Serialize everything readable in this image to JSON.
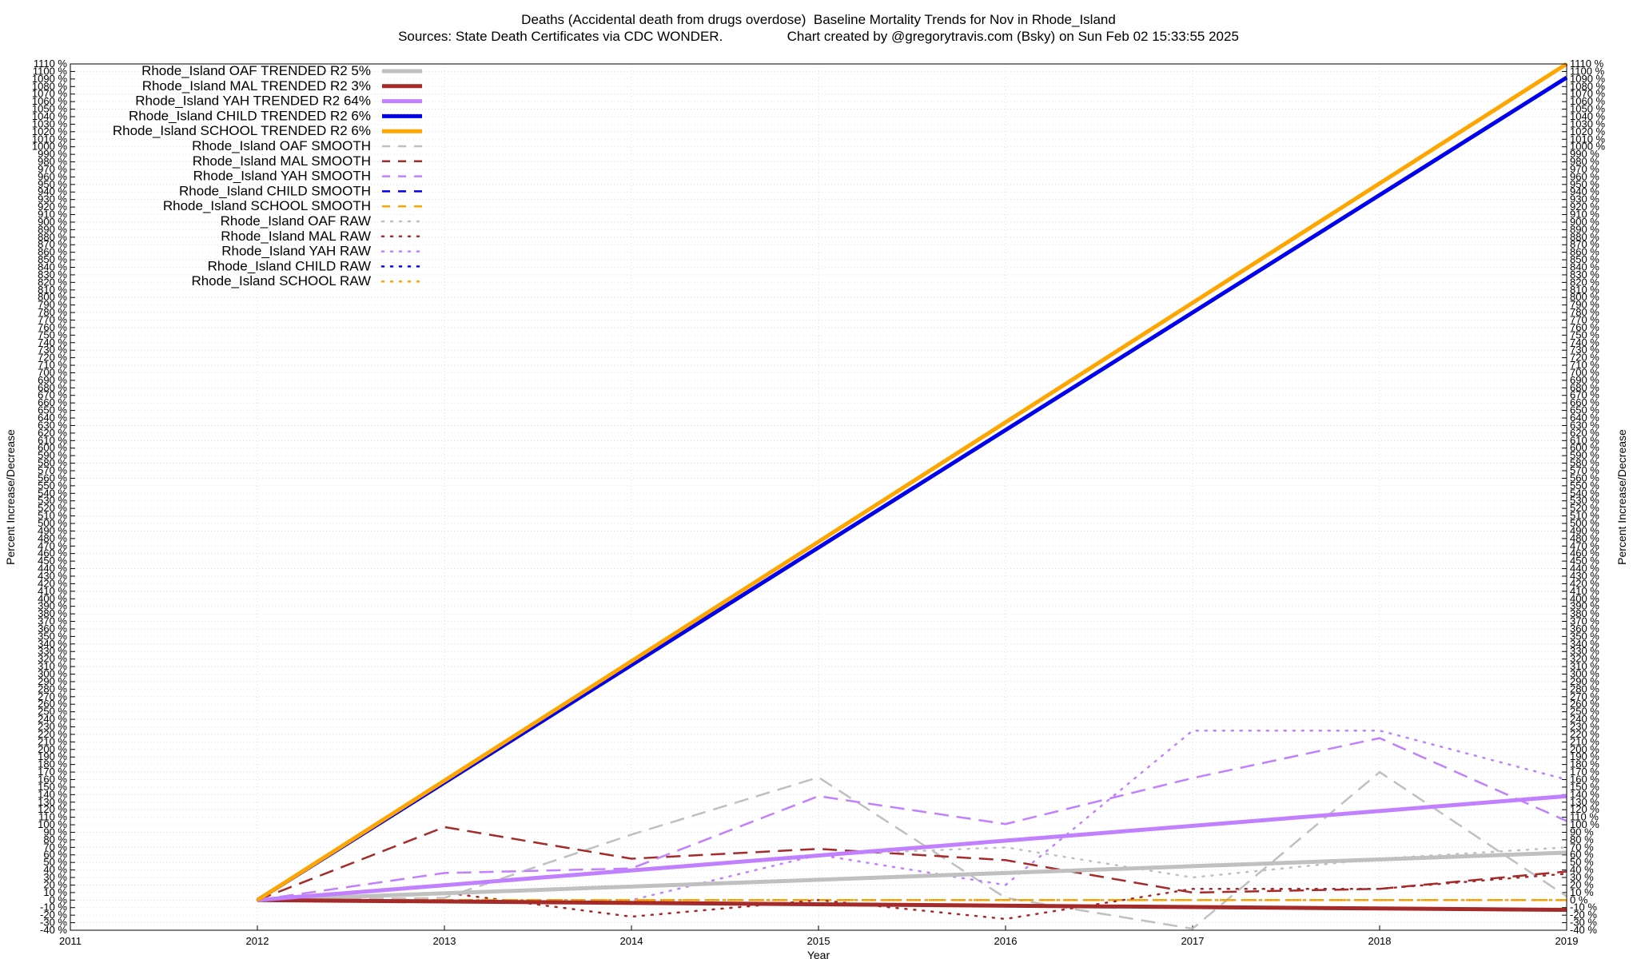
{
  "header": {
    "title_line1": "Deaths (Accidental death from drugs overdose)  Baseline Mortality Trends for Nov in Rhode_Island",
    "title_line2": "Sources: State Death Certificates via CDC WONDER.                 Chart created by @gregorytravis.com (Bsky) on Sun Feb 02 15:33:55 2025"
  },
  "chart_data": {
    "type": "line",
    "xlabel": "Year",
    "ylabel_left": "Percent Increase/Decrease",
    "ylabel_right": "Percent Increase/Decrease",
    "xlim": [
      2011,
      2019
    ],
    "ylim": [
      -40,
      1110
    ],
    "x_ticks": [
      "2011",
      "2012",
      "2013",
      "2014",
      "2015",
      "2016",
      "2017",
      "2018",
      "2019"
    ],
    "y_tick_step": 10,
    "y_tick_suffix": " %",
    "grid": true,
    "legend_position": "top-left",
    "series": [
      {
        "name": "Rhode_Island OAF TRENDED R2   5%",
        "style": "trend",
        "color": "#c0c0c0",
        "x": [
          2012,
          2019
        ],
        "y": [
          0,
          63
        ]
      },
      {
        "name": "Rhode_Island MAL TRENDED R2   3%",
        "style": "trend",
        "color": "#a52a2a",
        "x": [
          2012,
          2019
        ],
        "y": [
          0,
          -13
        ]
      },
      {
        "name": "Rhode_Island YAH TRENDED R2  64%",
        "style": "trend",
        "color": "#c080ff",
        "x": [
          2012,
          2019
        ],
        "y": [
          0,
          138
        ]
      },
      {
        "name": "Rhode_Island CHILD TRENDED R2   6%",
        "style": "trend",
        "color": "#0000ee",
        "x": [
          2012,
          2019
        ],
        "y": [
          0,
          1092
        ]
      },
      {
        "name": "Rhode_Island SCHOOL TRENDED R2   6%",
        "style": "trend",
        "color": "#ffa500",
        "x": [
          2012,
          2019
        ],
        "y": [
          0,
          1110
        ]
      },
      {
        "name": "Rhode_Island OAF SMOOTH",
        "style": "smooth",
        "color": "#c0c0c0",
        "x": [
          2012,
          2013,
          2014,
          2015,
          2016,
          2017,
          2018,
          2019
        ],
        "y": [
          0,
          3,
          87,
          163,
          3,
          -38,
          170,
          5
        ]
      },
      {
        "name": "Rhode_Island MAL SMOOTH",
        "style": "smooth",
        "color": "#a52a2a",
        "x": [
          2012,
          2013,
          2014,
          2015,
          2016,
          2017,
          2018,
          2019
        ],
        "y": [
          0,
          97,
          55,
          68,
          53,
          10,
          15,
          38
        ]
      },
      {
        "name": "Rhode_Island YAH SMOOTH",
        "style": "smooth",
        "color": "#c080ff",
        "x": [
          2012,
          2013,
          2014,
          2015,
          2016,
          2017,
          2018,
          2019
        ],
        "y": [
          0,
          36,
          42,
          138,
          101,
          162,
          215,
          105
        ]
      },
      {
        "name": "Rhode_Island CHILD SMOOTH",
        "style": "smooth",
        "color": "#0000ee",
        "x": [
          2012,
          2019
        ],
        "y": [
          0,
          0
        ]
      },
      {
        "name": "Rhode_Island SCHOOL SMOOTH",
        "style": "smooth",
        "color": "#ffa500",
        "x": [
          2012,
          2019
        ],
        "y": [
          0,
          0
        ]
      },
      {
        "name": "Rhode_Island OAF RAW",
        "style": "raw",
        "color": "#c0c0c0",
        "x": [
          2012,
          2013,
          2014,
          2015,
          2016,
          2017,
          2018,
          2019
        ],
        "y": [
          0,
          20,
          40,
          60,
          70,
          30,
          55,
          70
        ]
      },
      {
        "name": "Rhode_Island MAL RAW",
        "style": "raw",
        "color": "#a52a2a",
        "x": [
          2012,
          2013,
          2014,
          2015,
          2016,
          2017,
          2018,
          2019
        ],
        "y": [
          0,
          10,
          -22,
          0,
          -25,
          15,
          15,
          35
        ]
      },
      {
        "name": "Rhode_Island YAH RAW",
        "style": "raw",
        "color": "#c080ff",
        "x": [
          2012,
          2013,
          2014,
          2015,
          2016,
          2017,
          2018,
          2019
        ],
        "y": [
          0,
          0,
          0,
          60,
          20,
          225,
          225,
          160
        ]
      },
      {
        "name": "Rhode_Island CHILD RAW",
        "style": "raw",
        "color": "#0000ee",
        "x": [
          2012,
          2019
        ],
        "y": [
          0,
          0
        ]
      },
      {
        "name": "Rhode_Island SCHOOL RAW",
        "style": "raw",
        "color": "#ffa500",
        "x": [
          2012,
          2019
        ],
        "y": [
          0,
          0
        ]
      }
    ]
  }
}
